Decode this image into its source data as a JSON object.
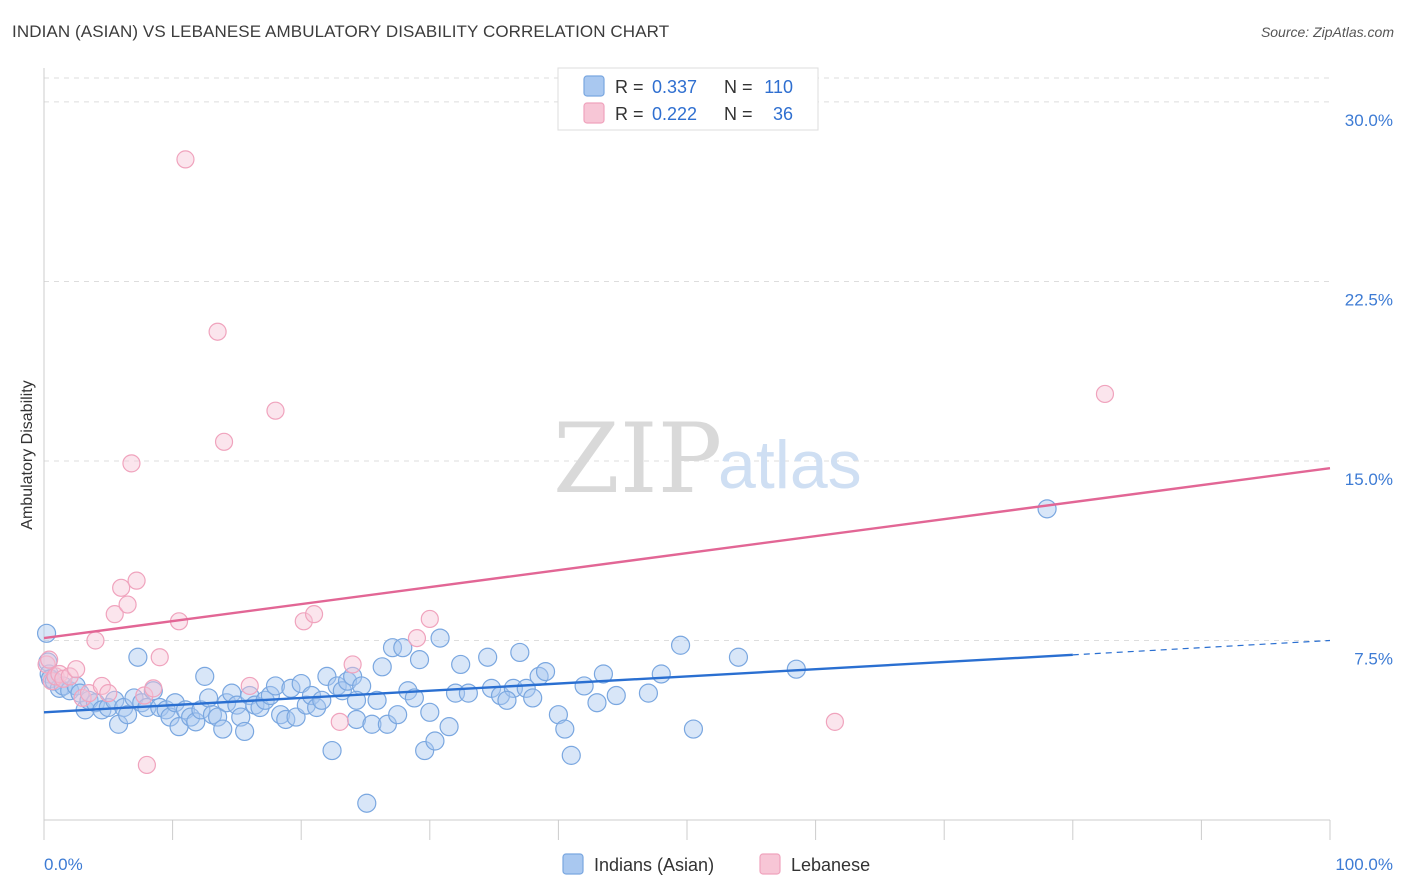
{
  "title": "INDIAN (ASIAN) VS LEBANESE AMBULATORY DISABILITY CORRELATION CHART",
  "source": "Source: ZipAtlas.com",
  "watermark": {
    "part1": "ZIP",
    "part2": "atlas"
  },
  "chart_data": {
    "type": "scatter",
    "title": "INDIAN (ASIAN) VS LEBANESE AMBULATORY DISABILITY CORRELATION CHART",
    "xlabel": "",
    "ylabel": "Ambulatory Disability",
    "xlim": [
      0,
      100
    ],
    "ylim": [
      0,
      31
    ],
    "x_tick_labels": {
      "left": "0.0%",
      "right": "100.0%"
    },
    "y_ticks": [
      {
        "value": 7.5,
        "label": "7.5%"
      },
      {
        "value": 15.0,
        "label": "15.0%"
      },
      {
        "value": 22.5,
        "label": "22.5%"
      },
      {
        "value": 30.0,
        "label": "30.0%"
      }
    ],
    "legend": {
      "placement": "top-center",
      "entries": [
        {
          "r_label": "R = ",
          "r_value": "0.337",
          "n_label": "N = ",
          "n_value": "110"
        },
        {
          "r_label": "R = ",
          "r_value": "0.222",
          "n_label": "N = ",
          "n_value": "36"
        }
      ]
    },
    "series": [
      {
        "name": "Indians (Asian)",
        "color": "#7aa7e0",
        "fill": "#a9c8f0",
        "trend_color": "#2a6fd1",
        "trend": {
          "x0": 0,
          "y0": 4.5,
          "x1": 80,
          "y1": 6.9,
          "dash_to_x": 100,
          "dash_to_y": 7.5
        },
        "points": [
          [
            0.2,
            7.8
          ],
          [
            0.3,
            6.6
          ],
          [
            0.4,
            6.1
          ],
          [
            0.5,
            5.9
          ],
          [
            0.8,
            5.8
          ],
          [
            1.2,
            5.5
          ],
          [
            1.5,
            5.6
          ],
          [
            2.0,
            5.4
          ],
          [
            2.5,
            5.6
          ],
          [
            2.8,
            5.3
          ],
          [
            3.2,
            4.6
          ],
          [
            3.5,
            5.0
          ],
          [
            4.0,
            4.9
          ],
          [
            4.5,
            4.6
          ],
          [
            5.0,
            4.7
          ],
          [
            5.5,
            5.0
          ],
          [
            5.8,
            4.0
          ],
          [
            6.2,
            4.7
          ],
          [
            6.5,
            4.4
          ],
          [
            7.0,
            5.1
          ],
          [
            7.3,
            6.8
          ],
          [
            7.6,
            4.9
          ],
          [
            8.0,
            4.7
          ],
          [
            8.5,
            5.4
          ],
          [
            9.0,
            4.7
          ],
          [
            9.5,
            4.6
          ],
          [
            9.8,
            4.3
          ],
          [
            10.2,
            4.9
          ],
          [
            10.5,
            3.9
          ],
          [
            11.0,
            4.6
          ],
          [
            11.4,
            4.3
          ],
          [
            11.8,
            4.1
          ],
          [
            12.2,
            4.6
          ],
          [
            12.5,
            6.0
          ],
          [
            12.8,
            5.1
          ],
          [
            13.1,
            4.4
          ],
          [
            13.5,
            4.3
          ],
          [
            13.9,
            3.8
          ],
          [
            14.2,
            4.9
          ],
          [
            14.6,
            5.3
          ],
          [
            15.0,
            4.8
          ],
          [
            15.3,
            4.3
          ],
          [
            15.6,
            3.7
          ],
          [
            16.0,
            5.2
          ],
          [
            16.4,
            4.8
          ],
          [
            16.8,
            4.7
          ],
          [
            17.2,
            5.0
          ],
          [
            17.6,
            5.2
          ],
          [
            18.0,
            5.6
          ],
          [
            18.4,
            4.4
          ],
          [
            18.8,
            4.2
          ],
          [
            19.2,
            5.5
          ],
          [
            19.6,
            4.3
          ],
          [
            20.0,
            5.7
          ],
          [
            20.4,
            4.8
          ],
          [
            20.8,
            5.2
          ],
          [
            21.2,
            4.7
          ],
          [
            21.6,
            5.0
          ],
          [
            22.0,
            6.0
          ],
          [
            22.4,
            2.9
          ],
          [
            22.8,
            5.6
          ],
          [
            23.2,
            5.4
          ],
          [
            23.6,
            5.8
          ],
          [
            24.0,
            6.0
          ],
          [
            24.3,
            4.2
          ],
          [
            24.7,
            5.6
          ],
          [
            25.1,
            0.7
          ],
          [
            25.5,
            4.0
          ],
          [
            25.9,
            5.0
          ],
          [
            26.3,
            6.4
          ],
          [
            26.7,
            4.0
          ],
          [
            27.1,
            7.2
          ],
          [
            27.5,
            4.4
          ],
          [
            27.9,
            7.2
          ],
          [
            28.3,
            5.4
          ],
          [
            28.8,
            5.1
          ],
          [
            29.2,
            6.7
          ],
          [
            29.6,
            2.9
          ],
          [
            30.0,
            4.5
          ],
          [
            30.4,
            3.3
          ],
          [
            30.8,
            7.6
          ],
          [
            31.5,
            3.9
          ],
          [
            32.0,
            5.3
          ],
          [
            32.4,
            6.5
          ],
          [
            33.0,
            5.3
          ],
          [
            34.5,
            6.8
          ],
          [
            34.8,
            5.5
          ],
          [
            35.5,
            5.2
          ],
          [
            36.5,
            5.5
          ],
          [
            37.0,
            7.0
          ],
          [
            37.5,
            5.5
          ],
          [
            38.0,
            5.1
          ],
          [
            38.5,
            6.0
          ],
          [
            39.0,
            6.2
          ],
          [
            40.0,
            4.4
          ],
          [
            40.5,
            3.8
          ],
          [
            41.0,
            2.7
          ],
          [
            42.0,
            5.6
          ],
          [
            43.0,
            4.9
          ],
          [
            43.5,
            6.1
          ],
          [
            44.5,
            5.2
          ],
          [
            47.0,
            5.3
          ],
          [
            48.0,
            6.1
          ],
          [
            49.5,
            7.3
          ],
          [
            50.5,
            3.8
          ],
          [
            54.0,
            6.8
          ],
          [
            58.5,
            6.3
          ],
          [
            78.0,
            13.0
          ],
          [
            24.3,
            5.0
          ],
          [
            36.0,
            5.0
          ]
        ]
      },
      {
        "name": "Lebanese",
        "color": "#f0a3bd",
        "fill": "#f7c6d6",
        "trend_color": "#e26695",
        "trend": {
          "x0": 0,
          "y0": 7.6,
          "x1": 100,
          "y1": 14.7
        },
        "points": [
          [
            0.2,
            6.5
          ],
          [
            0.4,
            6.7
          ],
          [
            0.6,
            5.8
          ],
          [
            0.9,
            6.0
          ],
          [
            1.2,
            6.1
          ],
          [
            1.5,
            5.9
          ],
          [
            2.0,
            6.0
          ],
          [
            2.5,
            6.3
          ],
          [
            3.0,
            5.1
          ],
          [
            3.5,
            5.3
          ],
          [
            4.0,
            7.5
          ],
          [
            4.5,
            5.6
          ],
          [
            5.0,
            5.3
          ],
          [
            5.5,
            8.6
          ],
          [
            6.0,
            9.7
          ],
          [
            6.5,
            9.0
          ],
          [
            6.8,
            14.9
          ],
          [
            7.2,
            10.0
          ],
          [
            7.8,
            5.2
          ],
          [
            8.0,
            2.3
          ],
          [
            8.5,
            5.5
          ],
          [
            9.0,
            6.8
          ],
          [
            10.5,
            8.3
          ],
          [
            11.0,
            27.6
          ],
          [
            13.5,
            20.4
          ],
          [
            14.0,
            15.8
          ],
          [
            16.0,
            5.6
          ],
          [
            18.0,
            17.1
          ],
          [
            20.2,
            8.3
          ],
          [
            21.0,
            8.6
          ],
          [
            23.0,
            4.1
          ],
          [
            24.0,
            6.5
          ],
          [
            29.0,
            7.6
          ],
          [
            30.0,
            8.4
          ],
          [
            61.5,
            4.1
          ],
          [
            82.5,
            17.8
          ]
        ]
      }
    ]
  }
}
